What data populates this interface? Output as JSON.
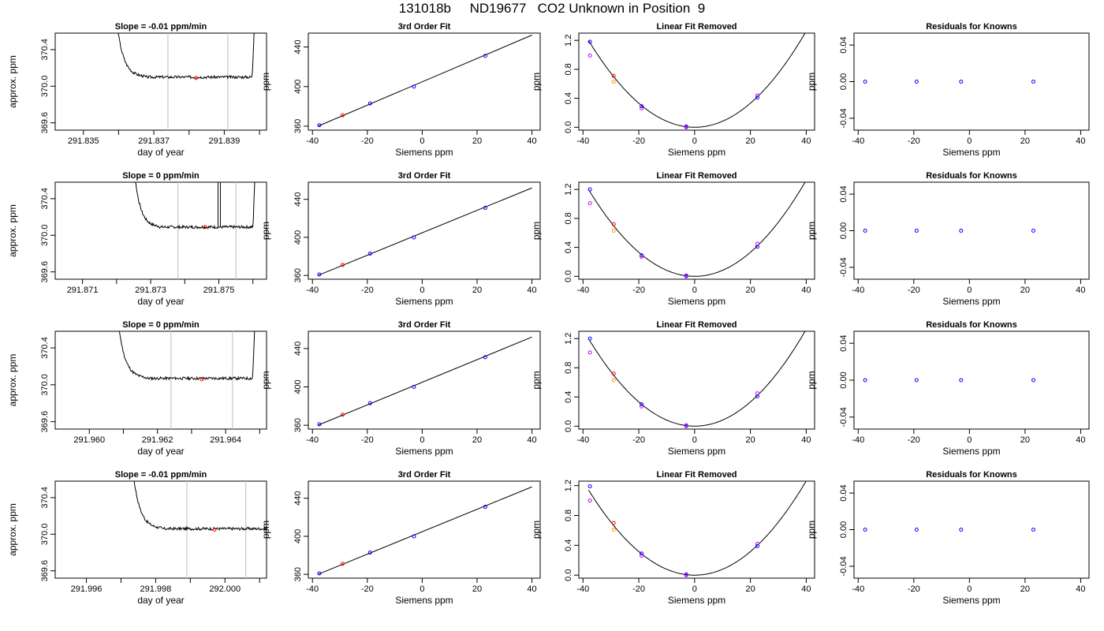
{
  "page_title": "131018b     ND19677   CO2 Unknown in Position  9",
  "chart_data": [
    {
      "row": 1,
      "trace": {
        "type": "line",
        "title": "Slope =  -0.01  ppm/min",
        "xlabel": "day of year",
        "ylabel": "approx. ppm",
        "xticks": [
          "291.835",
          "291.837",
          "291.839"
        ],
        "xtick_values": [
          291.835,
          291.837,
          291.839
        ],
        "yticks": [
          "369.6",
          "370.0",
          "370.4"
        ],
        "ytick_values": [
          369.6,
          370.0,
          370.4
        ],
        "xlim": [
          291.8342,
          291.8402
        ],
        "ylim": [
          369.52,
          370.58
        ],
        "vlines": [
          291.8374,
          291.8391
        ],
        "window": [
          291.8357,
          291.8399
        ],
        "plateau": 370.1,
        "point": {
          "x": 291.8382,
          "y": 370.09
        },
        "seed": 3
      },
      "fit": {
        "type": "scatter",
        "title": "3rd Order Fit",
        "xlabel": "Siemens ppm",
        "ylabel": "ppm",
        "xticks": [
          "-40",
          "-20",
          "0",
          "20",
          "40"
        ],
        "yticks": [
          "360",
          "400",
          "440"
        ],
        "xlim": [
          -41.5,
          43
        ],
        "ylim": [
          356,
          454
        ],
        "line": [
          {
            "x": -38,
            "y": 360
          },
          {
            "x": 40,
            "y": 452
          }
        ],
        "points": [
          {
            "x": -37.5,
            "y": 361,
            "color": "#0000ff"
          },
          {
            "x": -29,
            "y": 371,
            "color": "#ff0000"
          },
          {
            "x": -19,
            "y": 383,
            "color": "#0000ff"
          },
          {
            "x": -3,
            "y": 400,
            "color": "#0000ff"
          },
          {
            "x": 23,
            "y": 431,
            "color": "#0000ff"
          }
        ]
      },
      "linear_removed": {
        "type": "scatter",
        "title": "Linear Fit Removed",
        "xlabel": "Siemens ppm",
        "ylabel": "ppm",
        "xticks": [
          "-40",
          "-20",
          "0",
          "20",
          "40"
        ],
        "yticks": [
          "0.0",
          "0.4",
          "0.8",
          "1.2"
        ],
        "xlim": [
          -41.5,
          43
        ],
        "ylim": [
          -0.04,
          1.3
        ],
        "curve": {
          "a": 0.00083,
          "h": 0,
          "k": 0.0,
          "x_from": -38,
          "x_to": 40
        },
        "points": [
          {
            "x": -37.5,
            "y": 1.18,
            "color": "#0000ff"
          },
          {
            "x": -37.5,
            "y": 0.99,
            "color": "#cc00ff"
          },
          {
            "x": -29,
            "y": 0.71,
            "color": "#ff0000"
          },
          {
            "x": -29,
            "y": 0.63,
            "color": "#ff9900"
          },
          {
            "x": -19,
            "y": 0.29,
            "color": "#0000ff"
          },
          {
            "x": -19,
            "y": 0.26,
            "color": "#cc00ff"
          },
          {
            "x": -3,
            "y": 0.01,
            "color": "#0000ff"
          },
          {
            "x": -3,
            "y": 0.0,
            "color": "#cc00ff"
          },
          {
            "x": 22.5,
            "y": 0.41,
            "color": "#0000ff"
          },
          {
            "x": 22.5,
            "y": 0.44,
            "color": "#cc00ff"
          }
        ]
      },
      "residuals": {
        "type": "scatter",
        "title": "Residuals for Knowns",
        "xlabel": "Siemens ppm",
        "ylabel": "ppm",
        "xticks": [
          "-40",
          "-20",
          "0",
          "20",
          "40"
        ],
        "yticks": [
          "-0.04",
          "0.00",
          "0.04"
        ],
        "xlim": [
          -41.5,
          43
        ],
        "ylim": [
          -0.053,
          0.053
        ],
        "points": [
          {
            "x": -37.5,
            "y": 0.0,
            "color": "#0000ff"
          },
          {
            "x": -19,
            "y": 0.0,
            "color": "#0000ff"
          },
          {
            "x": -3,
            "y": 0.0,
            "color": "#0000ff"
          },
          {
            "x": 23,
            "y": 0.0,
            "color": "#0000ff"
          }
        ]
      }
    },
    {
      "row": 2,
      "trace": {
        "type": "line",
        "title": "Slope =  0  ppm/min",
        "xlabel": "day of year",
        "ylabel": "approx. ppm",
        "xticks": [
          "291.871",
          "291.873",
          "291.875"
        ],
        "xtick_values": [
          291.871,
          291.873,
          291.875
        ],
        "yticks": [
          "369.6",
          "370.0",
          "370.4"
        ],
        "ytick_values": [
          369.6,
          370.0,
          370.4
        ],
        "xlim": [
          291.8702,
          291.8764
        ],
        "ylim": [
          369.52,
          370.58
        ],
        "vlines": [
          291.8738,
          291.8755
        ],
        "window": [
          291.8723,
          291.8761
        ],
        "plateau": 370.09,
        "point": {
          "x": 291.8746,
          "y": 370.09
        },
        "spike": 291.875,
        "seed": 7
      },
      "fit": {
        "type": "scatter",
        "title": "3rd Order Fit",
        "xlabel": "Siemens ppm",
        "ylabel": "ppm",
        "xticks": [
          "-40",
          "-20",
          "0",
          "20",
          "40"
        ],
        "yticks": [
          "360",
          "400",
          "440"
        ],
        "xlim": [
          -41.5,
          43
        ],
        "ylim": [
          356,
          458
        ],
        "line": [
          {
            "x": -38,
            "y": 360
          },
          {
            "x": 40,
            "y": 452
          }
        ],
        "points": [
          {
            "x": -37.5,
            "y": 361,
            "color": "#0000ff"
          },
          {
            "x": -29,
            "y": 371,
            "color": "#ff0000"
          },
          {
            "x": -19,
            "y": 383,
            "color": "#0000ff"
          },
          {
            "x": -3,
            "y": 400,
            "color": "#0000ff"
          },
          {
            "x": 23,
            "y": 431,
            "color": "#0000ff"
          }
        ]
      },
      "linear_removed": {
        "type": "scatter",
        "title": "Linear Fit Removed",
        "xlabel": "Siemens ppm",
        "ylabel": "ppm",
        "xticks": [
          "-40",
          "-20",
          "0",
          "20",
          "40"
        ],
        "yticks": [
          "0.0",
          "0.4",
          "0.8",
          "1.2"
        ],
        "xlim": [
          -41.5,
          43
        ],
        "ylim": [
          -0.04,
          1.3
        ],
        "curve": {
          "a": 0.00083,
          "h": 0,
          "k": 0.0,
          "x_from": -38,
          "x_to": 40
        },
        "points": [
          {
            "x": -37.5,
            "y": 1.2,
            "color": "#0000ff"
          },
          {
            "x": -37.5,
            "y": 1.01,
            "color": "#cc00ff"
          },
          {
            "x": -29,
            "y": 0.72,
            "color": "#ff0000"
          },
          {
            "x": -29,
            "y": 0.63,
            "color": "#ff9900"
          },
          {
            "x": -19,
            "y": 0.29,
            "color": "#0000ff"
          },
          {
            "x": -19,
            "y": 0.27,
            "color": "#cc00ff"
          },
          {
            "x": -3,
            "y": 0.01,
            "color": "#0000ff"
          },
          {
            "x": -3,
            "y": 0.0,
            "color": "#cc00ff"
          },
          {
            "x": 22.5,
            "y": 0.41,
            "color": "#0000ff"
          },
          {
            "x": 22.5,
            "y": 0.45,
            "color": "#cc00ff"
          }
        ]
      },
      "residuals": {
        "type": "scatter",
        "title": "Residuals for Knowns",
        "xlabel": "Siemens ppm",
        "ylabel": "ppm",
        "xticks": [
          "-40",
          "-20",
          "0",
          "20",
          "40"
        ],
        "yticks": [
          "-0.04",
          "0.00",
          "0.04"
        ],
        "xlim": [
          -41.5,
          43
        ],
        "ylim": [
          -0.053,
          0.053
        ],
        "points": [
          {
            "x": -37.5,
            "y": 0.0,
            "color": "#0000ff"
          },
          {
            "x": -19,
            "y": 0.0,
            "color": "#0000ff"
          },
          {
            "x": -3,
            "y": 0.0,
            "color": "#0000ff"
          },
          {
            "x": 23,
            "y": 0.0,
            "color": "#0000ff"
          }
        ]
      }
    },
    {
      "row": 3,
      "trace": {
        "type": "line",
        "title": "Slope =  0  ppm/min",
        "xlabel": "day of year",
        "ylabel": "approx. ppm",
        "xticks": [
          "291.960",
          "291.962",
          "291.964"
        ],
        "xtick_values": [
          291.96,
          291.962,
          291.964
        ],
        "yticks": [
          "369.6",
          "370.0",
          "370.4"
        ],
        "ytick_values": [
          369.6,
          370.0,
          370.4
        ],
        "xlim": [
          291.959,
          291.9652
        ],
        "ylim": [
          369.52,
          370.58
        ],
        "vlines": [
          291.9624,
          291.9642
        ],
        "window": [
          291.9606,
          291.9649
        ],
        "plateau": 370.07,
        "point": {
          "x": 291.9633,
          "y": 370.06
        },
        "seed": 11
      },
      "fit": {
        "type": "scatter",
        "title": "3rd Order Fit",
        "xlabel": "Siemens ppm",
        "ylabel": "ppm",
        "xticks": [
          "-40",
          "-20",
          "0",
          "20",
          "40"
        ],
        "yticks": [
          "360",
          "400",
          "440"
        ],
        "xlim": [
          -41.5,
          43
        ],
        "ylim": [
          356,
          458
        ],
        "line": [
          {
            "x": -38,
            "y": 360
          },
          {
            "x": 40,
            "y": 452
          }
        ],
        "points": [
          {
            "x": -37.5,
            "y": 361,
            "color": "#0000ff"
          },
          {
            "x": -29,
            "y": 371,
            "color": "#ff0000"
          },
          {
            "x": -19,
            "y": 383,
            "color": "#0000ff"
          },
          {
            "x": -3,
            "y": 400,
            "color": "#0000ff"
          },
          {
            "x": 23,
            "y": 431,
            "color": "#0000ff"
          }
        ]
      },
      "linear_removed": {
        "type": "scatter",
        "title": "Linear Fit Removed",
        "xlabel": "Siemens ppm",
        "ylabel": "ppm",
        "xticks": [
          "-40",
          "-20",
          "0",
          "20",
          "40"
        ],
        "yticks": [
          "0.0",
          "0.4",
          "0.8",
          "1.2"
        ],
        "xlim": [
          -41.5,
          43
        ],
        "ylim": [
          -0.04,
          1.3
        ],
        "curve": {
          "a": 0.00083,
          "h": 0,
          "k": 0.0,
          "x_from": -38,
          "x_to": 40
        },
        "points": [
          {
            "x": -37.5,
            "y": 1.2,
            "color": "#0000ff"
          },
          {
            "x": -37.5,
            "y": 1.01,
            "color": "#cc00ff"
          },
          {
            "x": -29,
            "y": 0.72,
            "color": "#ff0000"
          },
          {
            "x": -29,
            "y": 0.63,
            "color": "#ff9900"
          },
          {
            "x": -19,
            "y": 0.3,
            "color": "#0000ff"
          },
          {
            "x": -19,
            "y": 0.27,
            "color": "#cc00ff"
          },
          {
            "x": -3,
            "y": 0.01,
            "color": "#0000ff"
          },
          {
            "x": -3,
            "y": 0.0,
            "color": "#cc00ff"
          },
          {
            "x": 22.5,
            "y": 0.41,
            "color": "#0000ff"
          },
          {
            "x": 22.5,
            "y": 0.45,
            "color": "#cc00ff"
          }
        ]
      },
      "residuals": {
        "type": "scatter",
        "title": "Residuals for Knowns",
        "xlabel": "Siemens ppm",
        "ylabel": "ppm",
        "xticks": [
          "-40",
          "-20",
          "0",
          "20",
          "40"
        ],
        "yticks": [
          "-0.04",
          "0.00",
          "0.04"
        ],
        "xlim": [
          -41.5,
          43
        ],
        "ylim": [
          -0.053,
          0.053
        ],
        "points": [
          {
            "x": -37.5,
            "y": 0.0,
            "color": "#0000ff"
          },
          {
            "x": -19,
            "y": 0.0,
            "color": "#0000ff"
          },
          {
            "x": -3,
            "y": 0.0,
            "color": "#0000ff"
          },
          {
            "x": 23,
            "y": 0.0,
            "color": "#0000ff"
          }
        ]
      }
    },
    {
      "row": 4,
      "trace": {
        "type": "line",
        "title": "Slope =  -0.01  ppm/min",
        "xlabel": "day of year",
        "ylabel": "approx. ppm",
        "xticks": [
          "291.996",
          "291.998",
          "292.000"
        ],
        "xtick_values": [
          291.996,
          291.998,
          292.0
        ],
        "yticks": [
          "369.6",
          "370.0",
          "370.4"
        ],
        "ytick_values": [
          369.6,
          370.0,
          370.4
        ],
        "xlim": [
          291.9951,
          292.0012
        ],
        "ylim": [
          369.52,
          370.58
        ],
        "vlines": [
          291.9989,
          292.0006
        ],
        "window": [
          291.9971,
          292.0014
        ],
        "plateau": 370.06,
        "point": {
          "x": 291.9997,
          "y": 370.05
        },
        "seed": 17
      },
      "fit": {
        "type": "scatter",
        "title": "3rd Order Fit",
        "xlabel": "Siemens ppm",
        "ylabel": "ppm",
        "xticks": [
          "-40",
          "-20",
          "0",
          "20",
          "40"
        ],
        "yticks": [
          "360",
          "400",
          "440"
        ],
        "xlim": [
          -41.5,
          43
        ],
        "ylim": [
          356,
          458
        ],
        "line": [
          {
            "x": -38,
            "y": 360
          },
          {
            "x": 40,
            "y": 452
          }
        ],
        "points": [
          {
            "x": -37.5,
            "y": 361,
            "color": "#0000ff"
          },
          {
            "x": -29,
            "y": 371,
            "color": "#ff0000"
          },
          {
            "x": -19,
            "y": 383,
            "color": "#0000ff"
          },
          {
            "x": -3,
            "y": 400,
            "color": "#0000ff"
          },
          {
            "x": 23,
            "y": 431,
            "color": "#0000ff"
          }
        ]
      },
      "linear_removed": {
        "type": "scatter",
        "title": "Linear Fit Removed",
        "xlabel": "Siemens ppm",
        "ylabel": "ppm",
        "xticks": [
          "-40",
          "-20",
          "0",
          "20",
          "40"
        ],
        "yticks": [
          "0.0",
          "0.4",
          "0.8",
          "1.2"
        ],
        "xlim": [
          -41.5,
          43
        ],
        "ylim": [
          -0.04,
          1.26
        ],
        "curve": {
          "a": 0.00079,
          "h": 0,
          "k": 0.0,
          "x_from": -38,
          "x_to": 40
        },
        "points": [
          {
            "x": -37.5,
            "y": 1.19,
            "color": "#0000ff"
          },
          {
            "x": -37.5,
            "y": 1.0,
            "color": "#cc00ff"
          },
          {
            "x": -29,
            "y": 0.7,
            "color": "#ff0000"
          },
          {
            "x": -29,
            "y": 0.61,
            "color": "#ff9900"
          },
          {
            "x": -19,
            "y": 0.29,
            "color": "#0000ff"
          },
          {
            "x": -19,
            "y": 0.26,
            "color": "#cc00ff"
          },
          {
            "x": -3,
            "y": 0.01,
            "color": "#0000ff"
          },
          {
            "x": -3,
            "y": 0.0,
            "color": "#cc00ff"
          },
          {
            "x": 22.5,
            "y": 0.39,
            "color": "#0000ff"
          },
          {
            "x": 22.5,
            "y": 0.42,
            "color": "#cc00ff"
          }
        ]
      },
      "residuals": {
        "type": "scatter",
        "title": "Residuals for Knowns",
        "xlabel": "Siemens ppm",
        "ylabel": "ppm",
        "xticks": [
          "-40",
          "-20",
          "0",
          "20",
          "40"
        ],
        "yticks": [
          "-0.04",
          "0.00",
          "0.04"
        ],
        "xlim": [
          -41.5,
          43
        ],
        "ylim": [
          -0.053,
          0.053
        ],
        "points": [
          {
            "x": -37.5,
            "y": 0.0,
            "color": "#0000ff"
          },
          {
            "x": -19,
            "y": 0.0,
            "color": "#0000ff"
          },
          {
            "x": -3,
            "y": 0.0,
            "color": "#0000ff"
          },
          {
            "x": 23,
            "y": 0.0,
            "color": "#0000ff"
          }
        ]
      }
    }
  ]
}
